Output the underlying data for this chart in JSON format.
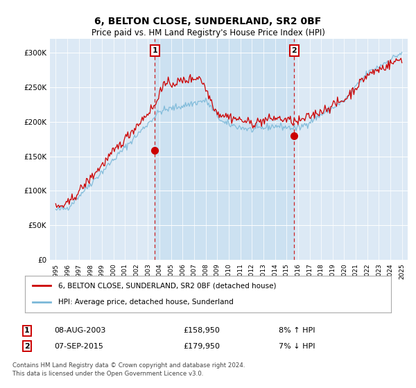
{
  "title": "6, BELTON CLOSE, SUNDERLAND, SR2 0BF",
  "subtitle": "Price paid vs. HM Land Registry's House Price Index (HPI)",
  "legend_line1": "6, BELTON CLOSE, SUNDERLAND, SR2 0BF (detached house)",
  "legend_line2": "HPI: Average price, detached house, Sunderland",
  "annotation1_label": "1",
  "annotation1_date": "08-AUG-2003",
  "annotation1_price": "£158,950",
  "annotation1_hpi": "8% ↑ HPI",
  "annotation1_year": 2003.6,
  "annotation1_value": 158950,
  "annotation2_label": "2",
  "annotation2_date": "07-SEP-2015",
  "annotation2_price": "£179,950",
  "annotation2_hpi": "7% ↓ HPI",
  "annotation2_year": 2015.67,
  "annotation2_value": 179950,
  "footer1": "Contains HM Land Registry data © Crown copyright and database right 2024.",
  "footer2": "This data is licensed under the Open Government Licence v3.0.",
  "y_ticks": [
    0,
    50000,
    100000,
    150000,
    200000,
    250000,
    300000
  ],
  "y_tick_labels": [
    "£0",
    "£50K",
    "£100K",
    "£150K",
    "£200K",
    "£250K",
    "£300K"
  ],
  "ylim": [
    0,
    320000
  ],
  "xlim_start": 1994.5,
  "xlim_end": 2025.5,
  "hpi_color": "#7ab8d8",
  "price_color": "#cc0000",
  "vline_color": "#cc0000",
  "shade_color": "#c8dff0",
  "background_color": "#dce9f5",
  "title_fontsize": 10,
  "subtitle_fontsize": 9
}
